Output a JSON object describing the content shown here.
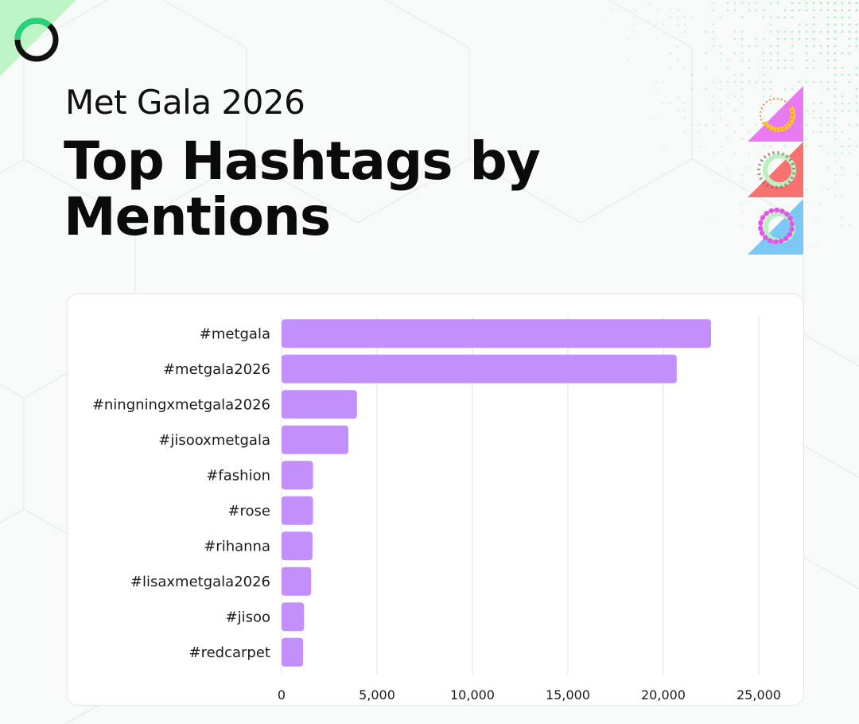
{
  "header": {
    "subtitle": "Met Gala 2026",
    "title": "Top Hashtags by Mentions"
  },
  "colors": {
    "bar": "#c28ffb",
    "grid": "#e4e6e6",
    "accent_green": "#22d47a",
    "badge_pink": "#e879f0",
    "badge_red": "#f87171",
    "badge_blue": "#7cc8f5"
  },
  "icons": [
    "logo-ring-icon",
    "data-badge-icons"
  ],
  "chart_data": {
    "type": "bar",
    "orientation": "horizontal",
    "categories": [
      "#metgala",
      "#metgala2026",
      "#ningningxmetgala2026",
      "#jisooxmetgala",
      "#fashion",
      "#rose",
      "#rihanna",
      "#lisaxmetgala2026",
      "#jisoo",
      "#redcarpet"
    ],
    "values": [
      22500,
      20700,
      3950,
      3500,
      1650,
      1650,
      1620,
      1550,
      1180,
      1130
    ],
    "xlim": [
      0,
      25000
    ],
    "xticks": [
      "0",
      "5,000",
      "10,000",
      "15,000",
      "20,000",
      "25,000"
    ],
    "xtick_values": [
      0,
      5000,
      10000,
      15000,
      20000,
      25000
    ],
    "grid": true,
    "title": "",
    "xlabel": "",
    "ylabel": ""
  }
}
